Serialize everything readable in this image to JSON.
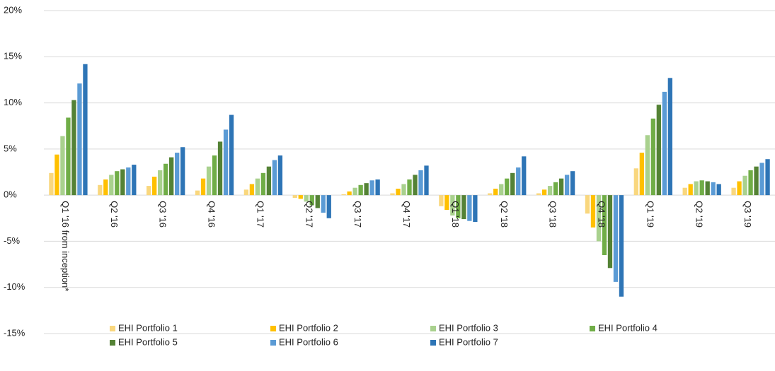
{
  "chart_data": {
    "type": "bar",
    "categories": [
      "Q1 '16 from inception*",
      "Q2 '16",
      "Q3 '16",
      "Q4 '16",
      "Q1 '17",
      "Q2 '17",
      "Q3 '17",
      "Q4 '17",
      "Q1 '18",
      "Q2 '18",
      "Q3 '18",
      "Q4 '18",
      "Q1 '19",
      "Q2 '19",
      "Q3 '19"
    ],
    "series": [
      {
        "name": "EHI Portfolio 1",
        "color": "#f9d77e",
        "values": [
          2.4,
          1.1,
          1.0,
          0.5,
          0.6,
          -0.3,
          0.1,
          0.2,
          -1.2,
          0.2,
          0.2,
          -2.0,
          2.9,
          0.8,
          0.8
        ]
      },
      {
        "name": "EHI Portfolio 2",
        "color": "#ffc000",
        "values": [
          4.4,
          1.7,
          2.0,
          1.8,
          1.2,
          -0.4,
          0.4,
          0.7,
          -1.6,
          0.7,
          0.6,
          -3.5,
          4.6,
          1.2,
          1.5
        ]
      },
      {
        "name": "EHI Portfolio 3",
        "color": "#a9d18e",
        "values": [
          6.4,
          2.2,
          2.7,
          3.1,
          1.8,
          -0.7,
          0.8,
          1.2,
          -2.2,
          1.2,
          1.0,
          -5.0,
          6.5,
          1.5,
          2.1
        ]
      },
      {
        "name": "EHI Portfolio 4",
        "color": "#70ad47",
        "values": [
          8.4,
          2.6,
          3.4,
          4.3,
          2.4,
          -1.1,
          1.1,
          1.7,
          -2.5,
          1.8,
          1.4,
          -6.5,
          8.3,
          1.6,
          2.7
        ]
      },
      {
        "name": "EHI Portfolio 5",
        "color": "#548235",
        "values": [
          10.3,
          2.8,
          4.1,
          5.8,
          3.1,
          -1.4,
          1.3,
          2.2,
          -2.6,
          2.4,
          1.8,
          -7.9,
          9.8,
          1.5,
          3.1
        ]
      },
      {
        "name": "EHI Portfolio 6",
        "color": "#5b9bd5",
        "values": [
          12.1,
          3.0,
          4.6,
          7.1,
          3.8,
          -1.9,
          1.6,
          2.7,
          -2.8,
          3.0,
          2.2,
          -9.4,
          11.2,
          1.4,
          3.5
        ]
      },
      {
        "name": "EHI Portfolio 7",
        "color": "#2e75b6",
        "values": [
          14.2,
          3.3,
          5.2,
          8.7,
          4.3,
          -2.5,
          1.7,
          3.2,
          -2.9,
          4.2,
          2.6,
          -11.0,
          12.7,
          1.2,
          3.9
        ]
      }
    ],
    "ylim": [
      -15,
      20
    ],
    "yticks": [
      {
        "value": -15,
        "label": "-15%"
      },
      {
        "value": -10,
        "label": "-10%"
      },
      {
        "value": -5,
        "label": "-5%"
      },
      {
        "value": 0,
        "label": "0%"
      },
      {
        "value": 5,
        "label": "5%"
      },
      {
        "value": 10,
        "label": "10%"
      },
      {
        "value": 15,
        "label": "15%"
      },
      {
        "value": 20,
        "label": "20%"
      }
    ],
    "grid": true,
    "legend": "bottom"
  }
}
